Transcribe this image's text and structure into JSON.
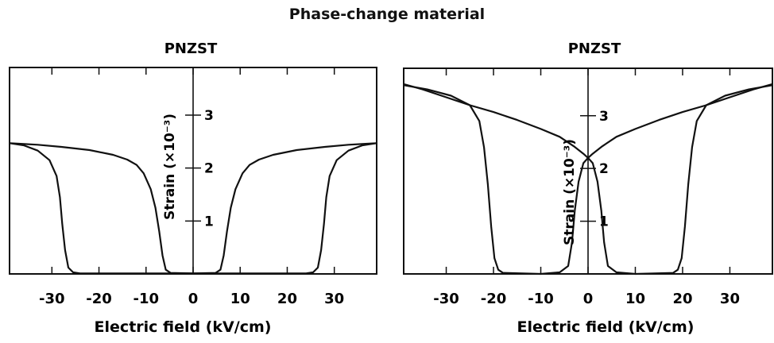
{
  "figure": {
    "title": "Phase-change material"
  },
  "chart_data": [
    {
      "type": "line",
      "title": "PNZST",
      "xlabel": "Electric field (kV/cm)",
      "ylabel": "Strain (×10⁻³)",
      "xlim": [
        -39,
        39
      ],
      "ylim": [
        0,
        3.9
      ],
      "xticks": [
        -30,
        -20,
        -10,
        0,
        10,
        20,
        30
      ],
      "yticks": [
        1,
        2,
        3
      ],
      "xtick_labels": [
        "-30",
        "-20",
        "-10",
        "0",
        "10",
        "20",
        "30"
      ],
      "ytick_labels": [
        "1",
        "2",
        "3"
      ],
      "series": [
        {
          "points": [
            [
              -39,
              2.47
            ],
            [
              -37,
              2.46
            ],
            [
              -33,
              2.44
            ],
            [
              -28,
              2.4
            ],
            [
              -22,
              2.34
            ],
            [
              -17,
              2.25
            ],
            [
              -14,
              2.16
            ],
            [
              -12,
              2.06
            ],
            [
              -10.5,
              1.9
            ],
            [
              -9,
              1.6
            ],
            [
              -8,
              1.25
            ],
            [
              -7.2,
              0.8
            ],
            [
              -6.5,
              0.35
            ],
            [
              -5.8,
              0.08
            ],
            [
              -4.8,
              0.02
            ],
            [
              0,
              0.01
            ],
            [
              24,
              0.01
            ],
            [
              25.5,
              0.03
            ],
            [
              26.5,
              0.12
            ],
            [
              27.2,
              0.45
            ],
            [
              27.8,
              0.95
            ],
            [
              28.3,
              1.45
            ],
            [
              29,
              1.85
            ],
            [
              30.5,
              2.15
            ],
            [
              33,
              2.33
            ],
            [
              36,
              2.43
            ],
            [
              39,
              2.47
            ]
          ]
        },
        {
          "points": [
            [
              39,
              2.47
            ],
            [
              37,
              2.46
            ],
            [
              33,
              2.44
            ],
            [
              28,
              2.4
            ],
            [
              22,
              2.34
            ],
            [
              17,
              2.25
            ],
            [
              14,
              2.16
            ],
            [
              12,
              2.06
            ],
            [
              10.5,
              1.9
            ],
            [
              9,
              1.6
            ],
            [
              8,
              1.25
            ],
            [
              7.2,
              0.8
            ],
            [
              6.5,
              0.35
            ],
            [
              5.8,
              0.08
            ],
            [
              4.8,
              0.02
            ],
            [
              0,
              0.01
            ],
            [
              -24,
              0.01
            ],
            [
              -25.5,
              0.03
            ],
            [
              -26.5,
              0.12
            ],
            [
              -27.2,
              0.45
            ],
            [
              -27.8,
              0.95
            ],
            [
              -28.3,
              1.45
            ],
            [
              -29,
              1.85
            ],
            [
              -30.5,
              2.15
            ],
            [
              -33,
              2.33
            ],
            [
              -36,
              2.43
            ],
            [
              -39,
              2.47
            ]
          ]
        }
      ]
    },
    {
      "type": "line",
      "title": "PNZST",
      "xlabel": "Electric field (kV/cm)",
      "ylabel": "Strain (×10⁻³)",
      "xlim": [
        -39,
        39
      ],
      "ylim": [
        0,
        3.9
      ],
      "xticks": [
        -30,
        -20,
        -10,
        0,
        10,
        20,
        30
      ],
      "yticks": [
        1,
        2,
        3
      ],
      "xtick_labels": [
        "-30",
        "-20",
        "-10",
        "0",
        "10",
        "20",
        "30"
      ],
      "ytick_labels": [
        "1",
        "2",
        "3"
      ],
      "series": [
        {
          "points": [
            [
              39,
              3.6
            ],
            [
              35,
              3.5
            ],
            [
              30,
              3.35
            ],
            [
              25,
              3.2
            ],
            [
              20,
              3.07
            ],
            [
              15,
              2.92
            ],
            [
              10,
              2.75
            ],
            [
              6,
              2.6
            ],
            [
              3,
              2.42
            ],
            [
              1,
              2.28
            ],
            [
              0,
              2.2
            ],
            [
              -1,
              2.1
            ],
            [
              -2,
              1.75
            ],
            [
              -2.8,
              1.2
            ],
            [
              -3.4,
              0.6
            ],
            [
              -4.2,
              0.15
            ],
            [
              -6,
              0.03
            ],
            [
              -10,
              0.0
            ],
            [
              -18,
              0.02
            ],
            [
              -19,
              0.08
            ],
            [
              -19.8,
              0.3
            ],
            [
              -20.5,
              0.9
            ],
            [
              -21.2,
              1.7
            ],
            [
              -22,
              2.4
            ],
            [
              -23,
              2.9
            ],
            [
              -25,
              3.2
            ],
            [
              -29,
              3.38
            ],
            [
              -34,
              3.5
            ],
            [
              -39,
              3.58
            ]
          ]
        },
        {
          "points": [
            [
              -39,
              3.6
            ],
            [
              -35,
              3.5
            ],
            [
              -30,
              3.35
            ],
            [
              -25,
              3.2
            ],
            [
              -20,
              3.07
            ],
            [
              -15,
              2.92
            ],
            [
              -10,
              2.75
            ],
            [
              -6,
              2.6
            ],
            [
              -3,
              2.42
            ],
            [
              -1,
              2.28
            ],
            [
              0,
              2.2
            ],
            [
              1,
              2.1
            ],
            [
              2,
              1.75
            ],
            [
              2.8,
              1.2
            ],
            [
              3.4,
              0.6
            ],
            [
              4.2,
              0.15
            ],
            [
              6,
              0.03
            ],
            [
              10,
              0.0
            ],
            [
              18,
              0.02
            ],
            [
              19,
              0.08
            ],
            [
              19.8,
              0.3
            ],
            [
              20.5,
              0.9
            ],
            [
              21.2,
              1.7
            ],
            [
              22,
              2.4
            ],
            [
              23,
              2.9
            ],
            [
              25,
              3.2
            ],
            [
              29,
              3.38
            ],
            [
              34,
              3.5
            ],
            [
              39,
              3.58
            ]
          ]
        }
      ]
    }
  ]
}
